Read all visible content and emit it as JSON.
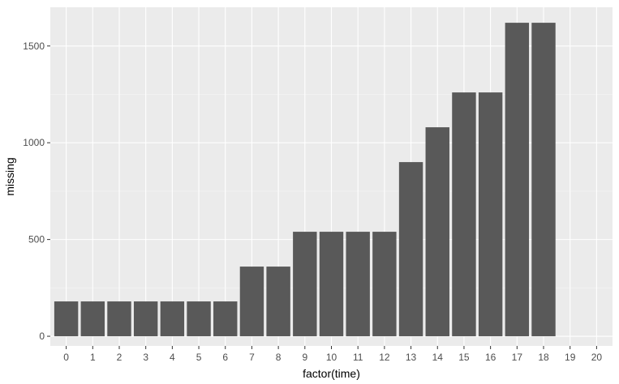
{
  "chart_data": {
    "type": "bar",
    "xlabel": "factor(time)",
    "ylabel": "missing",
    "categories": [
      "0",
      "1",
      "2",
      "3",
      "4",
      "5",
      "6",
      "7",
      "8",
      "9",
      "10",
      "11",
      "12",
      "13",
      "14",
      "15",
      "16",
      "17",
      "18",
      "19",
      "20"
    ],
    "values": [
      180,
      180,
      180,
      180,
      180,
      180,
      180,
      360,
      360,
      540,
      540,
      540,
      540,
      900,
      1080,
      1260,
      1260,
      1620,
      1620,
      0,
      0
    ],
    "ylim": [
      -50,
      1700
    ],
    "yticks": [
      0,
      500,
      1000,
      1500
    ],
    "grid": true,
    "legend": "none",
    "colors": {
      "bar": "#595959",
      "panel": "#ebebeb",
      "grid_major": "#ffffff",
      "grid_minor": "#f5f5f5",
      "tick_text": "#4d4d4d",
      "tick_mark": "#333333"
    }
  }
}
